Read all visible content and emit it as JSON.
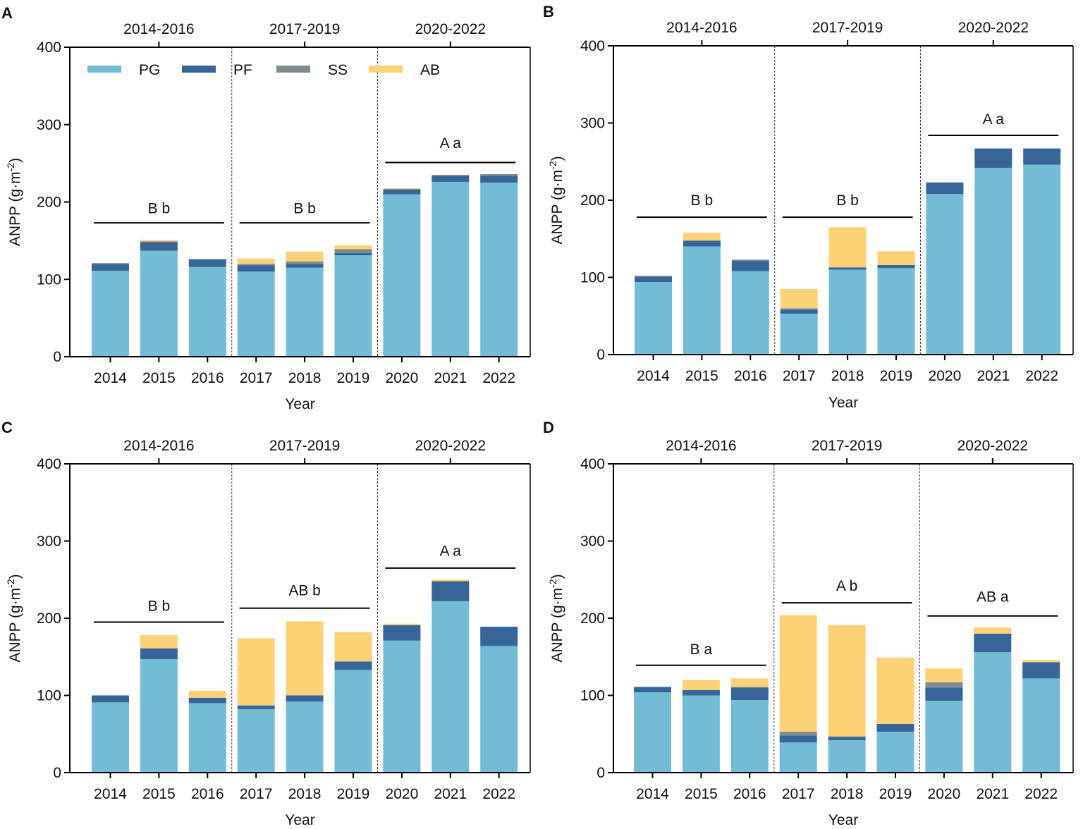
{
  "legend": [
    {
      "key": "PG",
      "label": "PG",
      "color": "#74bbd6"
    },
    {
      "key": "PF",
      "label": "PF",
      "color": "#36659a"
    },
    {
      "key": "SS",
      "label": "SS",
      "color": "#7f8c8f"
    },
    {
      "key": "AB",
      "label": "AB",
      "color": "#fdd176"
    }
  ],
  "chart_data": [
    {
      "panel": "A",
      "type": "bar",
      "stacked": true,
      "categories": [
        "2014",
        "2015",
        "2016",
        "2017",
        "2018",
        "2019",
        "2020",
        "2021",
        "2022"
      ],
      "periods": [
        "2014-2016",
        "2017-2019",
        "2020-2022"
      ],
      "xlabel": "Year",
      "ylabel": "ANPP (g·m",
      "ylabel_sup": "-2",
      "ylabel_end": ")",
      "ylim": [
        0,
        400
      ],
      "yticks": [
        0,
        100,
        200,
        300,
        400
      ],
      "legend_position": "top-left",
      "series": [
        {
          "name": "PG",
          "values": [
            111,
            137,
            116,
            110,
            115,
            131,
            210,
            226,
            225
          ]
        },
        {
          "name": "PF",
          "values": [
            9,
            11,
            10,
            8,
            5,
            3,
            6,
            8,
            9
          ]
        },
        {
          "name": "SS",
          "values": [
            1,
            1,
            0,
            2,
            3,
            5,
            1,
            1,
            2
          ]
        },
        {
          "name": "AB",
          "values": [
            0,
            2,
            0,
            7,
            13,
            5,
            1,
            0,
            0
          ]
        }
      ],
      "annotations": [
        {
          "label": "B b",
          "group": 0,
          "y": 173,
          "ylabel_at": 192
        },
        {
          "label": "B b",
          "group": 1,
          "y": 173,
          "ylabel_at": 192
        },
        {
          "label": "A a",
          "group": 2,
          "y": 251,
          "ylabel_at": 276
        }
      ]
    },
    {
      "panel": "B",
      "type": "bar",
      "stacked": true,
      "categories": [
        "2014",
        "2015",
        "2016",
        "2017",
        "2018",
        "2019",
        "2020",
        "2021",
        "2022"
      ],
      "periods": [
        "2014-2016",
        "2017-2019",
        "2020-2022"
      ],
      "xlabel": "Year",
      "ylabel": "ANPP (g·m",
      "ylabel_sup": "-2",
      "ylabel_end": ")",
      "ylim": [
        0,
        400
      ],
      "yticks": [
        0,
        100,
        200,
        300,
        400
      ],
      "series": [
        {
          "name": "PG",
          "values": [
            94,
            140,
            108,
            53,
            110,
            112,
            208,
            242,
            246
          ]
        },
        {
          "name": "PF",
          "values": [
            7,
            7,
            13,
            5,
            3,
            4,
            15,
            25,
            21
          ]
        },
        {
          "name": "SS",
          "values": [
            1,
            1,
            2,
            2,
            0,
            0,
            0,
            0,
            0
          ]
        },
        {
          "name": "AB",
          "values": [
            0,
            10,
            0,
            25,
            52,
            18,
            0,
            0,
            0
          ]
        }
      ],
      "annotations": [
        {
          "label": "B b",
          "group": 0,
          "y": 178,
          "ylabel_at": 200
        },
        {
          "label": "B b",
          "group": 1,
          "y": 178,
          "ylabel_at": 200
        },
        {
          "label": "A a",
          "group": 2,
          "y": 284,
          "ylabel_at": 305
        }
      ]
    },
    {
      "panel": "C",
      "type": "bar",
      "stacked": true,
      "categories": [
        "2014",
        "2015",
        "2016",
        "2017",
        "2018",
        "2019",
        "2020",
        "2021",
        "2022"
      ],
      "periods": [
        "2014-2016",
        "2017-2019",
        "2020-2022"
      ],
      "xlabel": "Year",
      "ylabel": "ANPP (g·m",
      "ylabel_sup": "-2",
      "ylabel_end": ")",
      "ylim": [
        0,
        400
      ],
      "yticks": [
        0,
        100,
        200,
        300,
        400
      ],
      "series": [
        {
          "name": "PG",
          "values": [
            91,
            147,
            90,
            82,
            92,
            133,
            171,
            222,
            164
          ]
        },
        {
          "name": "PF",
          "values": [
            9,
            14,
            7,
            5,
            8,
            11,
            20,
            26,
            25
          ]
        },
        {
          "name": "SS",
          "values": [
            0,
            0,
            0,
            0,
            0,
            0,
            0,
            0,
            0
          ]
        },
        {
          "name": "AB",
          "values": [
            0,
            17,
            9,
            87,
            96,
            38,
            2,
            2,
            0
          ]
        }
      ],
      "annotations": [
        {
          "label": "B b",
          "group": 0,
          "y": 195,
          "ylabel_at": 216
        },
        {
          "label": "AB b",
          "group": 1,
          "y": 213,
          "ylabel_at": 236
        },
        {
          "label": "A a",
          "group": 2,
          "y": 265,
          "ylabel_at": 287
        }
      ]
    },
    {
      "panel": "D",
      "type": "bar",
      "stacked": true,
      "categories": [
        "2014",
        "2015",
        "2016",
        "2017",
        "2018",
        "2019",
        "2020",
        "2021",
        "2022"
      ],
      "periods": [
        "2014-2016",
        "2017-2019",
        "2020-2022"
      ],
      "xlabel": "Year",
      "ylabel": "ANPP (g·m",
      "ylabel_sup": "-2",
      "ylabel_end": ")",
      "ylim": [
        0,
        400
      ],
      "yticks": [
        0,
        100,
        200,
        300,
        400
      ],
      "series": [
        {
          "name": "PG",
          "values": [
            104,
            100,
            94,
            39,
            42,
            53,
            93,
            156,
            122
          ]
        },
        {
          "name": "PF",
          "values": [
            7,
            7,
            16,
            9,
            4,
            10,
            17,
            24,
            21
          ]
        },
        {
          "name": "SS",
          "values": [
            0,
            0,
            1,
            5,
            1,
            0,
            7,
            0,
            0
          ]
        },
        {
          "name": "AB",
          "values": [
            0,
            13,
            11,
            151,
            144,
            86,
            18,
            8,
            3
          ]
        }
      ],
      "annotations": [
        {
          "label": "B a",
          "group": 0,
          "y": 139,
          "ylabel_at": 160
        },
        {
          "label": "A b",
          "group": 1,
          "y": 220,
          "ylabel_at": 242
        },
        {
          "label": "AB a",
          "group": 2,
          "y": 203,
          "ylabel_at": 228
        }
      ]
    }
  ]
}
